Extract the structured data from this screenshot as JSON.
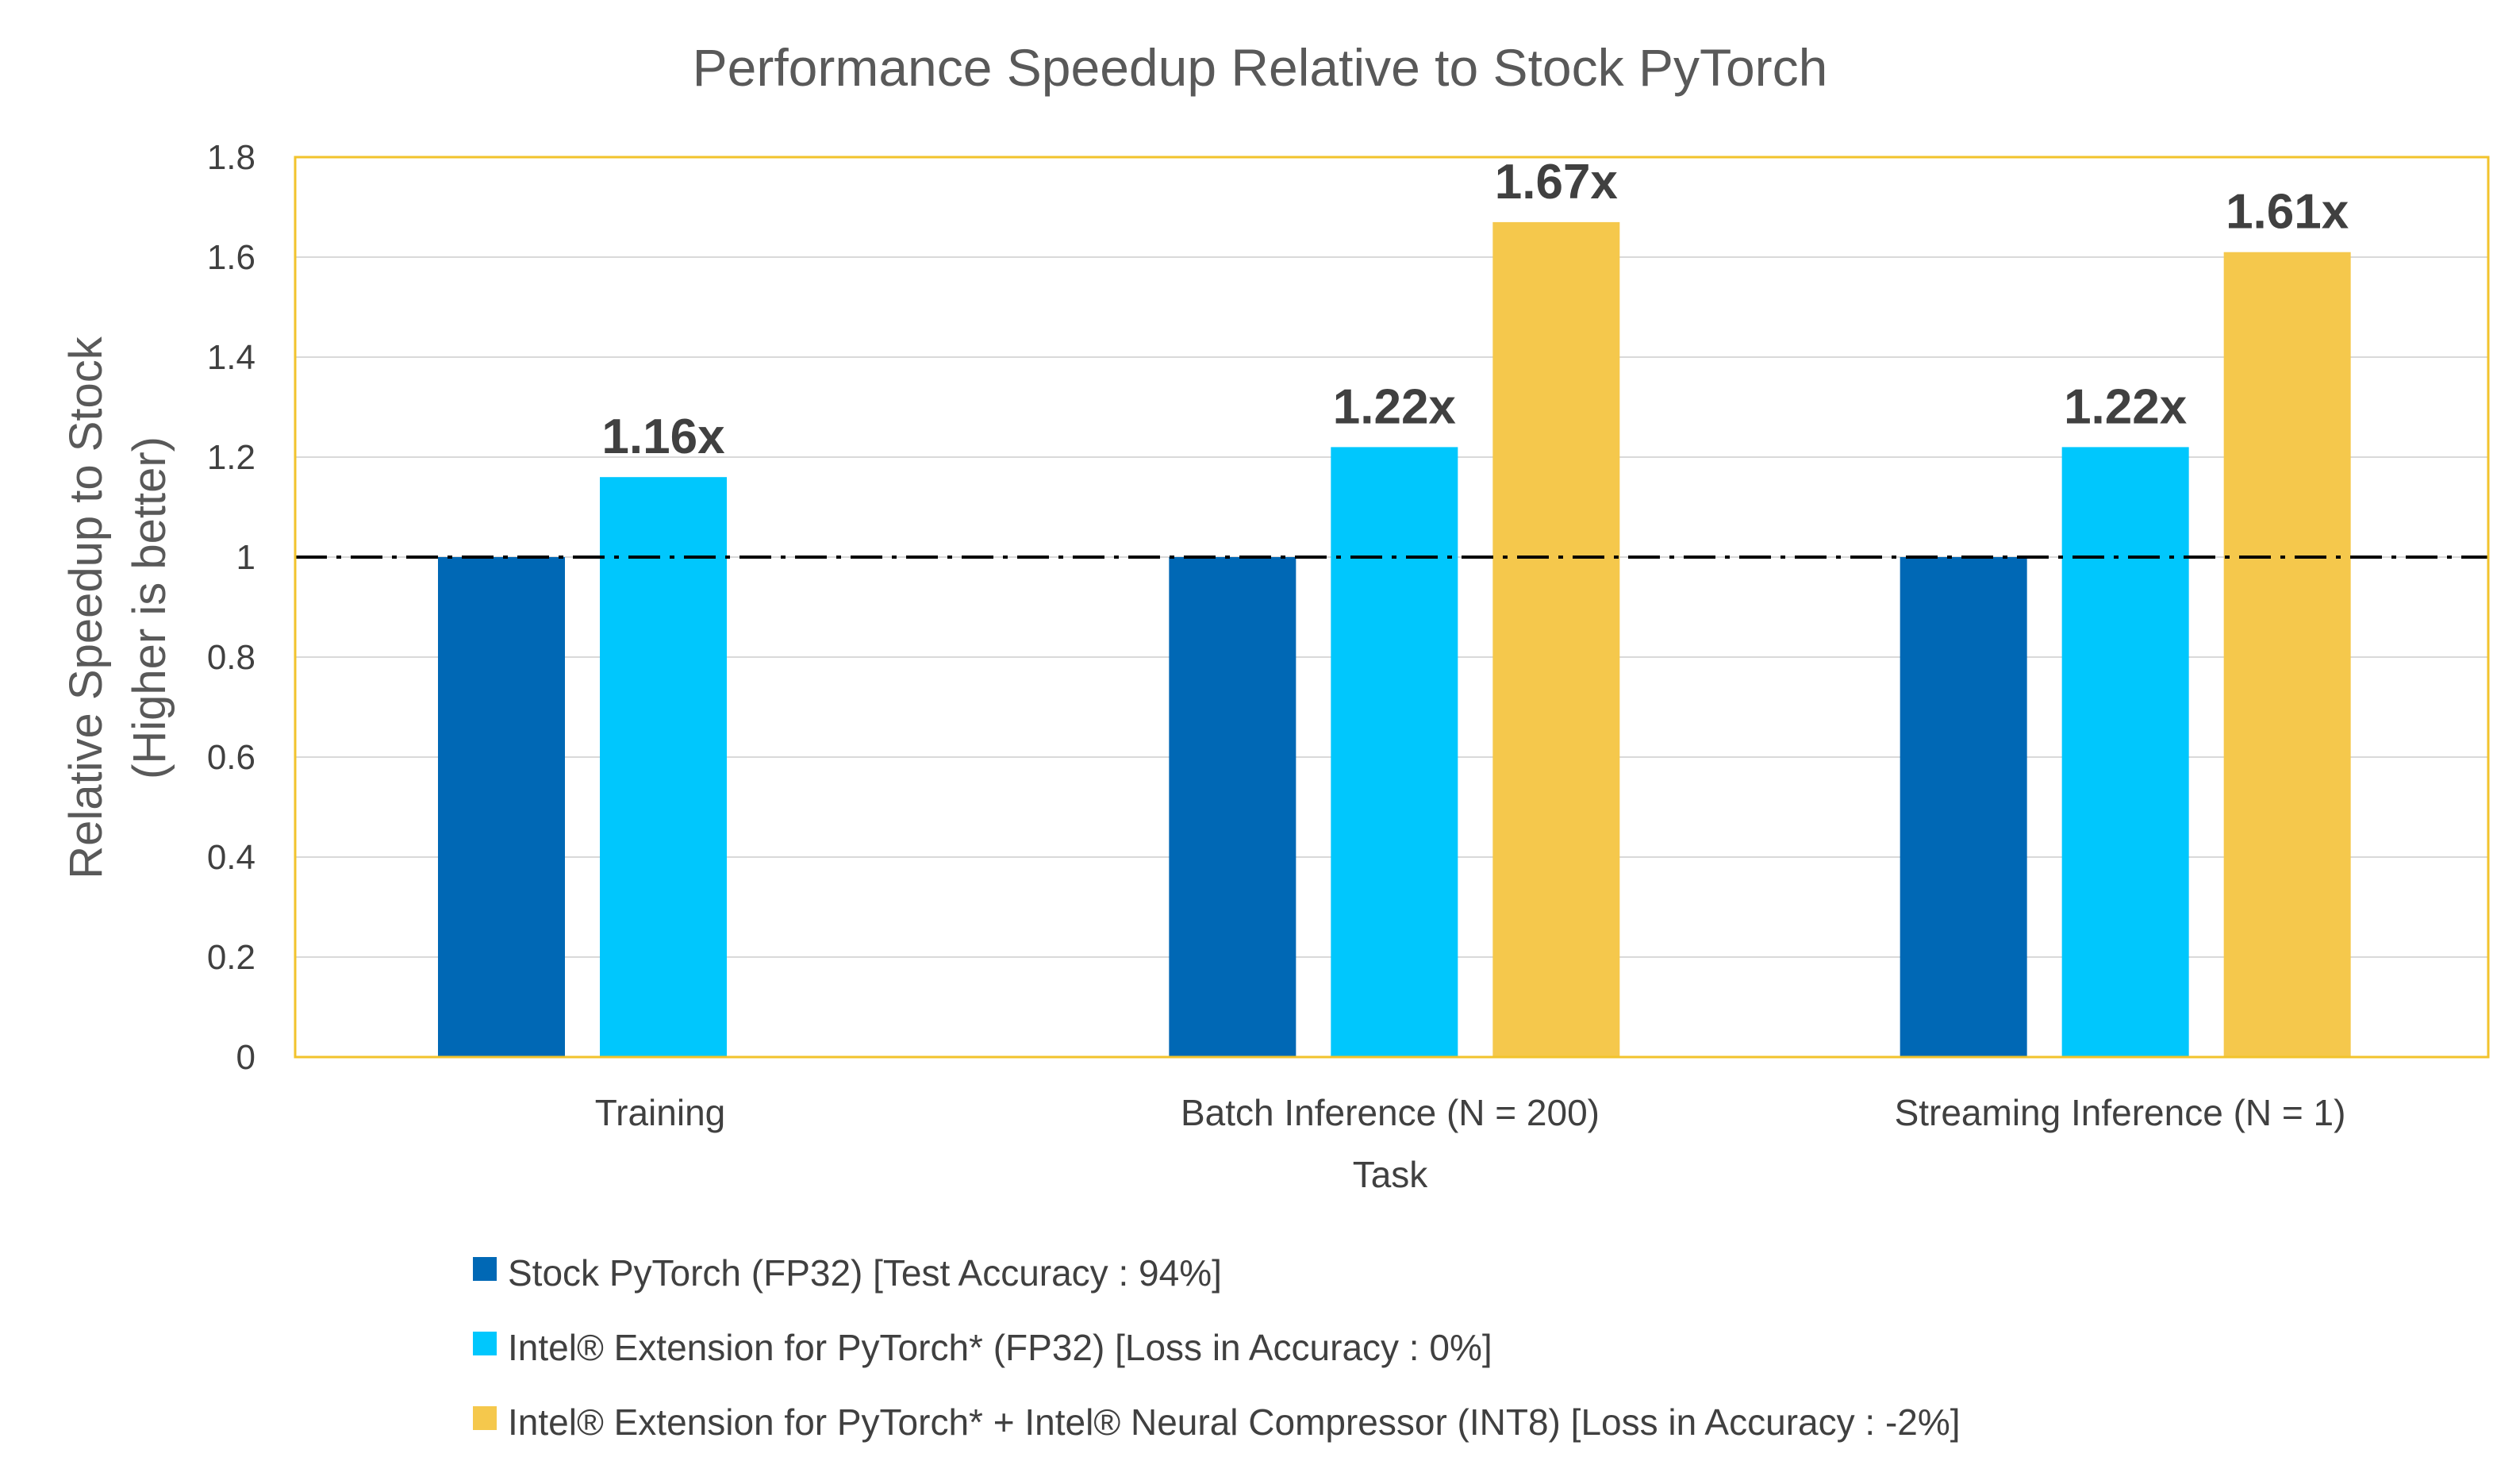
{
  "chart_data": {
    "type": "bar",
    "title": "Performance Speedup Relative to Stock PyTorch",
    "xlabel": "Task",
    "ylabel_line1": "Relative Speedup to Stock",
    "ylabel_line2": "(Higher is better)",
    "ylim": [
      0,
      1.8
    ],
    "yticks": [
      "0",
      "0.2",
      "0.4",
      "0.6",
      "0.8",
      "1",
      "1.2",
      "1.4",
      "1.6",
      "1.8"
    ],
    "categories": [
      "Training",
      "Batch Inference (N = 200)",
      "Streaming Inference (N = 1)"
    ],
    "grid": true,
    "reference_line": 1,
    "legend_position": "bottom",
    "series": [
      {
        "name": "Stock PyTorch (FP32) [Test Accuracy : 94%]",
        "color": "#0068B5",
        "values": [
          1,
          1,
          1
        ],
        "labels": [
          "",
          "",
          ""
        ]
      },
      {
        "name": "Intel® Extension for PyTorch* (FP32) [Loss in Accuracy : 0%]",
        "color": "#00C7FD",
        "values": [
          1.16,
          1.22,
          1.22
        ],
        "labels": [
          "1.16x",
          "1.22x",
          "1.22x"
        ]
      },
      {
        "name": "Intel® Extension for PyTorch* + Intel® Neural Compressor (INT8) [Loss in Accuracy : -2%]",
        "color": "#F5C84C",
        "values": [
          null,
          1.67,
          1.61
        ],
        "labels": [
          "",
          "1.67x",
          "1.61x"
        ]
      }
    ]
  },
  "colors": {
    "plot_border": "#F2C32C",
    "grid": "#D9D9D9",
    "reference_line": "#000000"
  }
}
